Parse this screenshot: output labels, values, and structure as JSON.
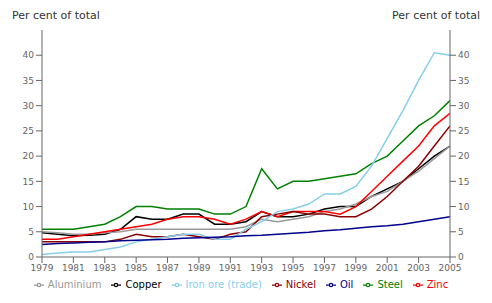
{
  "chart_data": {
    "type": "line",
    "ylabel": "Per cent of total",
    "y2label": "Per cent of total",
    "x": [
      1979,
      1980,
      1981,
      1982,
      1983,
      1984,
      1985,
      1986,
      1987,
      1988,
      1989,
      1990,
      1991,
      1992,
      1993,
      1994,
      1995,
      1996,
      1997,
      1998,
      1999,
      2000,
      2001,
      2002,
      2003,
      2004,
      2005
    ],
    "series": [
      {
        "name": "Copper",
        "color": "#000000",
        "values": [
          4.8,
          4.5,
          4.2,
          4.3,
          4.5,
          5.5,
          8.0,
          7.5,
          7.5,
          8.5,
          8.5,
          6.5,
          6.5,
          7.0,
          9.0,
          8.0,
          8.0,
          8.5,
          9.5,
          10.0,
          10.0,
          12.0,
          13.5,
          15.0,
          17.5,
          20.0,
          22.0
        ]
      },
      {
        "name": "Aluminium",
        "color": "#999999",
        "values": [
          5.0,
          4.8,
          4.5,
          4.5,
          4.8,
          5.0,
          5.5,
          5.5,
          5.5,
          5.5,
          5.5,
          5.5,
          5.5,
          6.0,
          7.5,
          7.0,
          7.5,
          8.0,
          9.0,
          9.5,
          10.5,
          12.0,
          13.0,
          15.0,
          17.0,
          19.5,
          22.0
        ]
      },
      {
        "name": "Zinc",
        "color": "#ff0000",
        "values": [
          3.5,
          3.5,
          4.0,
          4.5,
          5.0,
          5.5,
          6.0,
          6.5,
          7.5,
          8.0,
          8.0,
          7.5,
          6.5,
          7.5,
          9.0,
          8.0,
          9.0,
          9.0,
          9.0,
          8.5,
          10.0,
          13.0,
          16.0,
          19.0,
          22.0,
          26.0,
          28.5
        ]
      },
      {
        "name": "Nickel",
        "color": "#8b0000",
        "values": [
          3.0,
          3.0,
          3.0,
          3.0,
          3.0,
          3.5,
          4.5,
          4.0,
          4.0,
          4.5,
          4.0,
          3.5,
          4.5,
          5.0,
          8.0,
          8.5,
          9.0,
          8.5,
          8.5,
          8.0,
          8.0,
          9.5,
          12.0,
          15.0,
          18.0,
          22.0,
          26.0
        ]
      },
      {
        "name": "Steel",
        "color": "#008000",
        "values": [
          5.5,
          5.5,
          5.5,
          6.0,
          6.5,
          8.0,
          10.0,
          10.0,
          9.5,
          9.5,
          9.5,
          8.5,
          8.5,
          10.0,
          17.5,
          13.5,
          15.0,
          15.0,
          15.5,
          16.0,
          16.5,
          18.5,
          20.0,
          23.0,
          26.0,
          28.0,
          31.0
        ]
      },
      {
        "name": "Iron ore (trade)",
        "color": "#87ceeb",
        "values": [
          0.5,
          0.8,
          1.0,
          1.0,
          1.5,
          2.0,
          3.0,
          3.5,
          4.0,
          4.5,
          4.5,
          3.5,
          3.5,
          5.5,
          7.0,
          9.0,
          9.5,
          10.5,
          12.5,
          12.5,
          14.0,
          18.0,
          23.5,
          29.0,
          35.0,
          40.5,
          40.0
        ]
      },
      {
        "name": "Oil",
        "color": "#00008b",
        "values": [
          2.5,
          2.7,
          2.8,
          2.9,
          3.0,
          3.2,
          3.3,
          3.4,
          3.5,
          3.7,
          3.8,
          3.9,
          4.0,
          4.2,
          4.3,
          4.5,
          4.7,
          4.9,
          5.2,
          5.4,
          5.7,
          6.0,
          6.2,
          6.5,
          7.0,
          7.5,
          8.0
        ]
      }
    ],
    "xlim": [
      1979,
      2005
    ],
    "xticks": [
      1979,
      1981,
      1983,
      1985,
      1987,
      1989,
      1991,
      1993,
      1995,
      1997,
      1999,
      2001,
      2003,
      2005
    ],
    "ylim": [
      0,
      45
    ],
    "yticks": [
      0,
      5,
      10,
      15,
      20,
      25,
      30,
      35,
      40
    ],
    "y2lim": [
      0,
      45
    ],
    "y2ticks": [
      0,
      5,
      10,
      15,
      20,
      25,
      30,
      35,
      40
    ],
    "grid": false,
    "legend": "bottom"
  }
}
